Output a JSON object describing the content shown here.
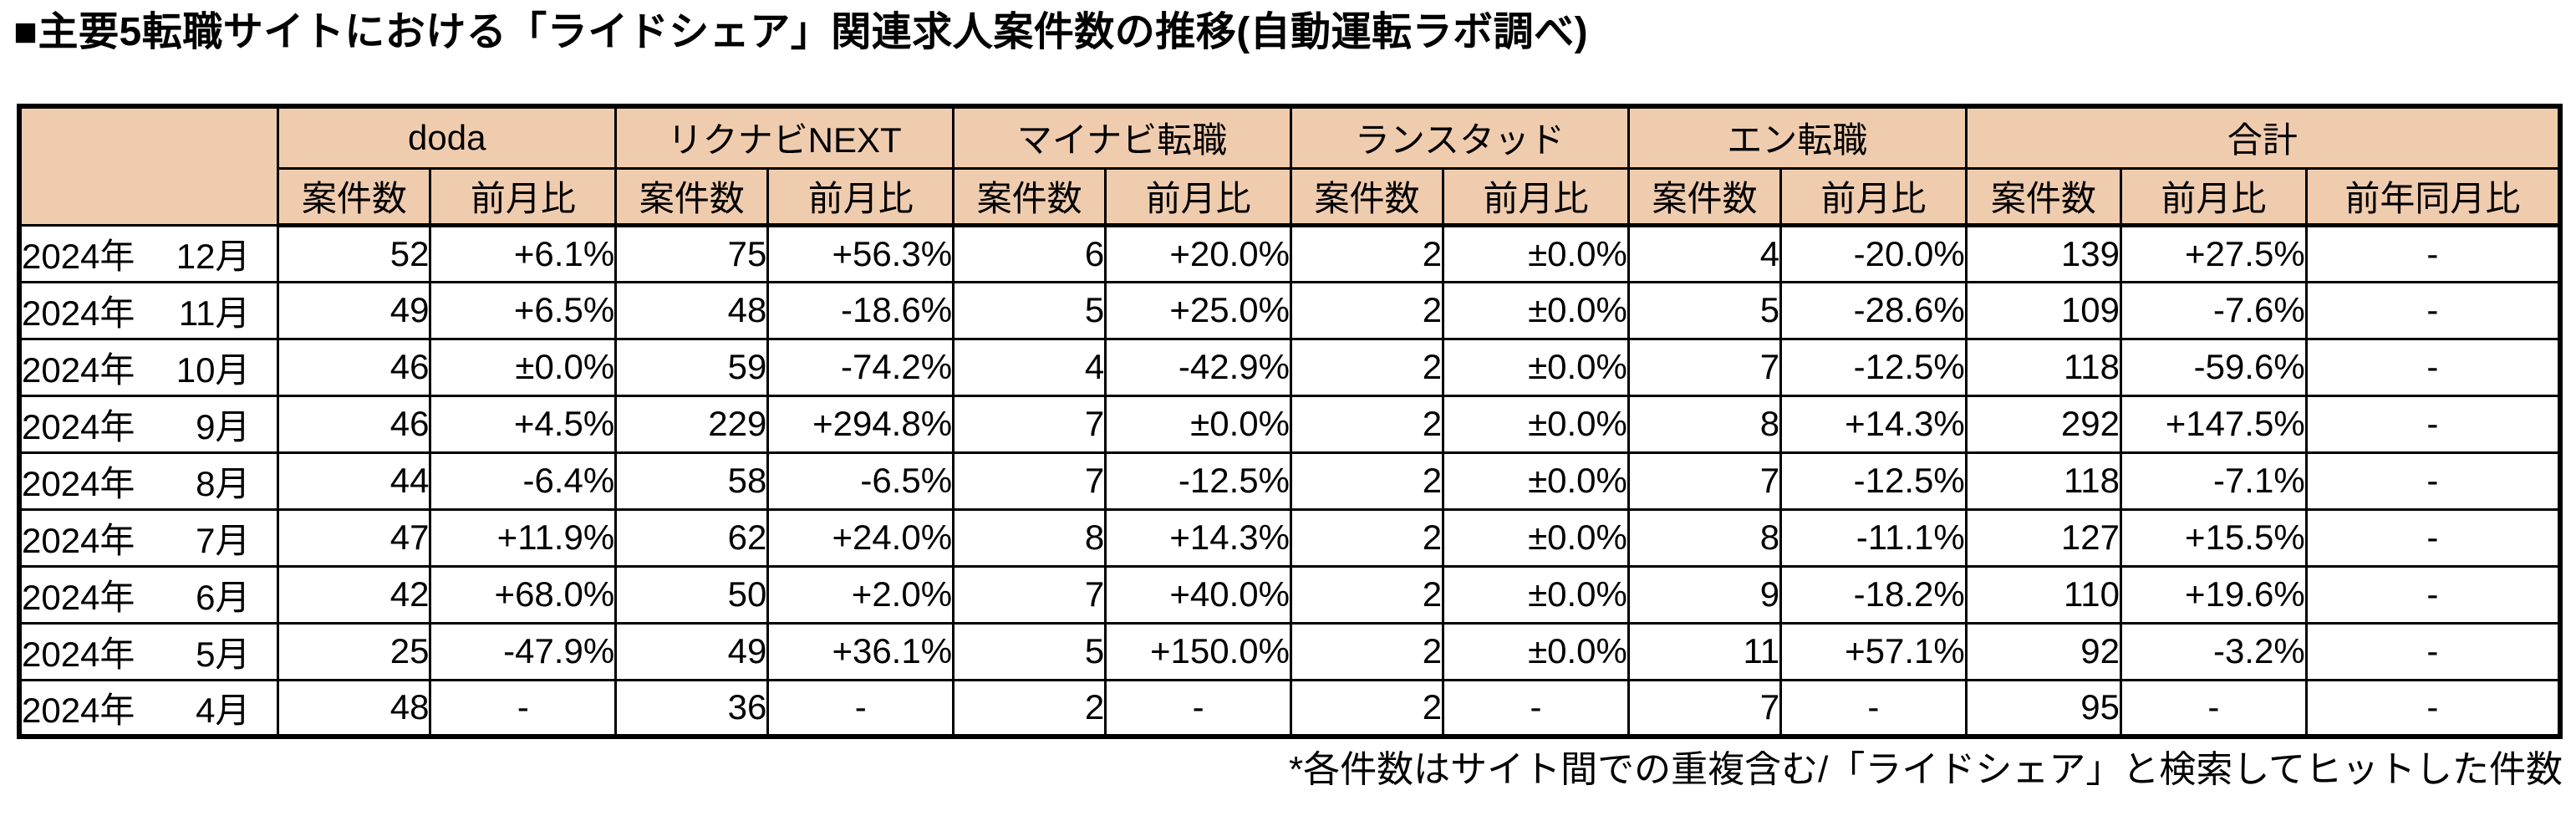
{
  "title": "■主要5転職サイトにおける「ライドシェア」関連求人案件数の推移(自動運転ラボ調べ)",
  "footnote": "*各件数はサイト間での重複含む/「ライドシェア」と検索してヒットした件数",
  "colors": {
    "header_bg": "#F0CCAE",
    "border": "#000000",
    "text": "#000000",
    "background": "#FFFFFF"
  },
  "table": {
    "site_groups": [
      {
        "label": "doda",
        "cols": [
          "案件数",
          "前月比"
        ]
      },
      {
        "label": "リクナビNEXT",
        "cols": [
          "案件数",
          "前月比"
        ]
      },
      {
        "label": "マイナビ転職",
        "cols": [
          "案件数",
          "前月比"
        ]
      },
      {
        "label": "ランスタッド",
        "cols": [
          "案件数",
          "前月比"
        ]
      },
      {
        "label": "エン転職",
        "cols": [
          "案件数",
          "前月比"
        ]
      },
      {
        "label": "合計",
        "cols": [
          "案件数",
          "前月比",
          "前年同月比"
        ]
      }
    ],
    "rows": [
      {
        "year": "2024年",
        "month": "12月",
        "values": [
          "52",
          "+6.1%",
          "75",
          "+56.3%",
          "6",
          "+20.0%",
          "2",
          "±0.0%",
          "4",
          "-20.0%",
          "139",
          "+27.5%",
          "-"
        ]
      },
      {
        "year": "2024年",
        "month": "11月",
        "values": [
          "49",
          "+6.5%",
          "48",
          "-18.6%",
          "5",
          "+25.0%",
          "2",
          "±0.0%",
          "5",
          "-28.6%",
          "109",
          "-7.6%",
          "-"
        ]
      },
      {
        "year": "2024年",
        "month": "10月",
        "values": [
          "46",
          "±0.0%",
          "59",
          "-74.2%",
          "4",
          "-42.9%",
          "2",
          "±0.0%",
          "7",
          "-12.5%",
          "118",
          "-59.6%",
          "-"
        ]
      },
      {
        "year": "2024年",
        "month": "9月",
        "values": [
          "46",
          "+4.5%",
          "229",
          "+294.8%",
          "7",
          "±0.0%",
          "2",
          "±0.0%",
          "8",
          "+14.3%",
          "292",
          "+147.5%",
          "-"
        ]
      },
      {
        "year": "2024年",
        "month": "8月",
        "values": [
          "44",
          "-6.4%",
          "58",
          "-6.5%",
          "7",
          "-12.5%",
          "2",
          "±0.0%",
          "7",
          "-12.5%",
          "118",
          "-7.1%",
          "-"
        ]
      },
      {
        "year": "2024年",
        "month": "7月",
        "values": [
          "47",
          "+11.9%",
          "62",
          "+24.0%",
          "8",
          "+14.3%",
          "2",
          "±0.0%",
          "8",
          "-11.1%",
          "127",
          "+15.5%",
          "-"
        ]
      },
      {
        "year": "2024年",
        "month": "6月",
        "values": [
          "42",
          "+68.0%",
          "50",
          "+2.0%",
          "7",
          "+40.0%",
          "2",
          "±0.0%",
          "9",
          "-18.2%",
          "110",
          "+19.6%",
          "-"
        ]
      },
      {
        "year": "2024年",
        "month": "5月",
        "values": [
          "25",
          "-47.9%",
          "49",
          "+36.1%",
          "5",
          "+150.0%",
          "2",
          "±0.0%",
          "11",
          "+57.1%",
          "92",
          "-3.2%",
          "-"
        ]
      },
      {
        "year": "2024年",
        "month": "4月",
        "values": [
          "48",
          "-",
          "36",
          "-",
          "2",
          "-",
          "2",
          "-",
          "7",
          "-",
          "95",
          "-",
          "-"
        ]
      }
    ]
  },
  "chart_data": {
    "type": "table",
    "title": "主要5転職サイトにおける「ライドシェア」関連求人案件数の推移(自動運転ラボ調べ)",
    "row_labels": [
      "2024年12月",
      "2024年11月",
      "2024年10月",
      "2024年9月",
      "2024年8月",
      "2024年7月",
      "2024年6月",
      "2024年5月",
      "2024年4月"
    ],
    "column_groups": [
      "doda",
      "リクナビNEXT",
      "マイナビ転職",
      "ランスタッド",
      "エン転職",
      "合計"
    ],
    "subcolumns": [
      "案件数",
      "前月比"
    ],
    "series": [
      {
        "name": "doda",
        "counts": [
          52,
          49,
          46,
          46,
          44,
          47,
          42,
          25,
          48
        ],
        "mom_change": [
          "+6.1%",
          "+6.5%",
          "±0.0%",
          "+4.5%",
          "-6.4%",
          "+11.9%",
          "+68.0%",
          "-47.9%",
          "-"
        ]
      },
      {
        "name": "リクナビNEXT",
        "counts": [
          75,
          48,
          59,
          229,
          58,
          62,
          50,
          49,
          36
        ],
        "mom_change": [
          "+56.3%",
          "-18.6%",
          "-74.2%",
          "+294.8%",
          "-6.5%",
          "+24.0%",
          "+2.0%",
          "+36.1%",
          "-"
        ]
      },
      {
        "name": "マイナビ転職",
        "counts": [
          6,
          5,
          4,
          7,
          7,
          8,
          7,
          5,
          2
        ],
        "mom_change": [
          "+20.0%",
          "+25.0%",
          "-42.9%",
          "±0.0%",
          "-12.5%",
          "+14.3%",
          "+40.0%",
          "+150.0%",
          "-"
        ]
      },
      {
        "name": "ランスタッド",
        "counts": [
          2,
          2,
          2,
          2,
          2,
          2,
          2,
          2,
          2
        ],
        "mom_change": [
          "±0.0%",
          "±0.0%",
          "±0.0%",
          "±0.0%",
          "±0.0%",
          "±0.0%",
          "±0.0%",
          "±0.0%",
          "-"
        ]
      },
      {
        "name": "エン転職",
        "counts": [
          4,
          5,
          7,
          8,
          7,
          8,
          9,
          11,
          7
        ],
        "mom_change": [
          "-20.0%",
          "-28.6%",
          "-12.5%",
          "+14.3%",
          "-12.5%",
          "-11.1%",
          "-18.2%",
          "+57.1%",
          "-"
        ]
      }
    ],
    "total": {
      "name": "合計",
      "counts": [
        139,
        109,
        118,
        292,
        118,
        127,
        110,
        92,
        95
      ],
      "mom_change": [
        "+27.5%",
        "-7.6%",
        "-59.6%",
        "+147.5%",
        "-7.1%",
        "+15.5%",
        "+19.6%",
        "-3.2%",
        "-"
      ],
      "yoy_change": [
        "-",
        "-",
        "-",
        "-",
        "-",
        "-",
        "-",
        "-",
        "-"
      ]
    }
  }
}
